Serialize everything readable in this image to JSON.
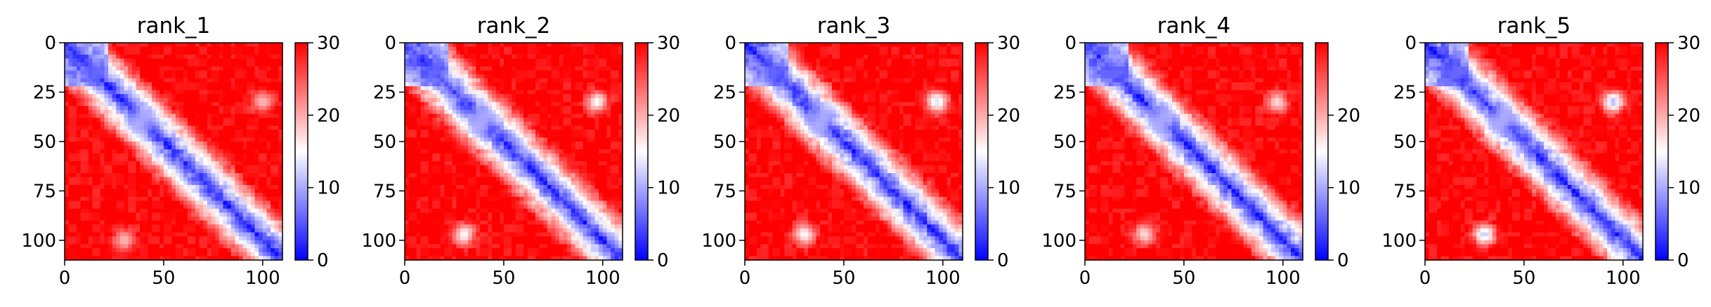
{
  "chart_data": [
    {
      "type": "heatmap",
      "title": "rank_1",
      "x_ticks": [
        0,
        50,
        100
      ],
      "y_ticks": [
        0,
        25,
        50,
        75,
        100
      ],
      "xlim": [
        0,
        110
      ],
      "ylim": [
        110,
        0
      ],
      "colorbar": {
        "ticks": [
          0,
          10,
          20,
          30
        ],
        "range": [
          0,
          30
        ],
        "colors": [
          "#0000ff",
          "#ffffff",
          "#ff0000"
        ]
      },
      "features": [
        {
          "x": 15,
          "y": 15,
          "value": 6
        },
        {
          "x": 40,
          "y": 37,
          "value": 10
        },
        {
          "x": 100,
          "y": 30,
          "value": 19
        },
        {
          "x": 30,
          "y": 100,
          "value": 19
        },
        {
          "x": 37,
          "y": 42,
          "value": 10
        }
      ]
    },
    {
      "type": "heatmap",
      "title": "rank_2",
      "x_ticks": [
        0,
        50,
        100
      ],
      "y_ticks": [
        0,
        25,
        50,
        75,
        100
      ],
      "xlim": [
        0,
        110
      ],
      "ylim": [
        110,
        0
      ],
      "colorbar": {
        "ticks": [
          0,
          10,
          20,
          30
        ],
        "range": [
          0,
          30
        ],
        "colors": [
          "#0000ff",
          "#ffffff",
          "#ff0000"
        ]
      },
      "features": [
        {
          "x": 15,
          "y": 15,
          "value": 6
        },
        {
          "x": 40,
          "y": 37,
          "value": 10
        },
        {
          "x": 97,
          "y": 30,
          "value": 15
        },
        {
          "x": 30,
          "y": 97,
          "value": 15
        },
        {
          "x": 37,
          "y": 42,
          "value": 10
        }
      ]
    },
    {
      "type": "heatmap",
      "title": "rank_3",
      "x_ticks": [
        0,
        50,
        100
      ],
      "y_ticks": [
        0,
        25,
        50,
        75,
        100
      ],
      "xlim": [
        0,
        110
      ],
      "ylim": [
        110,
        0
      ],
      "colorbar": {
        "ticks": [
          0,
          10,
          20,
          30
        ],
        "range": [
          0,
          30
        ],
        "colors": [
          "#0000ff",
          "#ffffff",
          "#ff0000"
        ]
      },
      "features": [
        {
          "x": 15,
          "y": 15,
          "value": 6
        },
        {
          "x": 40,
          "y": 37,
          "value": 10
        },
        {
          "x": 97,
          "y": 30,
          "value": 13
        },
        {
          "x": 30,
          "y": 97,
          "value": 15
        },
        {
          "x": 37,
          "y": 42,
          "value": 10
        }
      ]
    },
    {
      "type": "heatmap",
      "title": "rank_4",
      "x_ticks": [
        0,
        50,
        100
      ],
      "y_ticks": [
        0,
        25,
        50,
        75,
        100
      ],
      "xlim": [
        0,
        110
      ],
      "ylim": [
        110,
        0
      ],
      "colorbar": {
        "ticks": [
          0,
          10,
          20
        ],
        "range": [
          0,
          30
        ],
        "colors": [
          "#0000ff",
          "#ffffff",
          "#ff0000"
        ]
      },
      "features": [
        {
          "x": 15,
          "y": 15,
          "value": 6
        },
        {
          "x": 40,
          "y": 37,
          "value": 10
        },
        {
          "x": 97,
          "y": 30,
          "value": 17
        },
        {
          "x": 30,
          "y": 97,
          "value": 17
        },
        {
          "x": 37,
          "y": 42,
          "value": 10
        }
      ]
    },
    {
      "type": "heatmap",
      "title": "rank_5",
      "x_ticks": [
        0,
        50,
        100
      ],
      "y_ticks": [
        0,
        25,
        50,
        75,
        100
      ],
      "xlim": [
        0,
        110
      ],
      "ylim": [
        110,
        0
      ],
      "colorbar": {
        "ticks": [
          0,
          10,
          20,
          30
        ],
        "range": [
          0,
          30
        ],
        "colors": [
          "#0000ff",
          "#ffffff",
          "#ff0000"
        ]
      },
      "features": [
        {
          "x": 15,
          "y": 15,
          "value": 6
        },
        {
          "x": 40,
          "y": 37,
          "value": 10
        },
        {
          "x": 95,
          "y": 30,
          "value": 11
        },
        {
          "x": 30,
          "y": 97,
          "value": 12
        },
        {
          "x": 37,
          "y": 42,
          "value": 10
        }
      ]
    }
  ]
}
